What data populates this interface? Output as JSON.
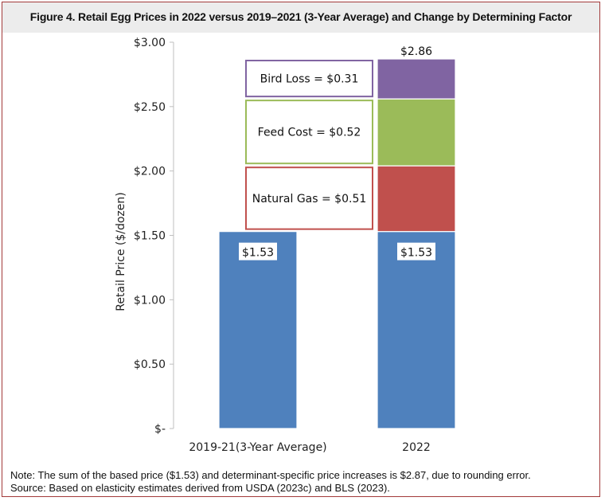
{
  "title": "Figure 4. Retail Egg Prices in 2022 versus 2019–2021 (3-Year Average) and Change by Determining Factor",
  "notes": [
    "Note: The sum of the based price ($1.53) and determinant-specific price increases is $2.87, due to rounding error.",
    "Source: Based on elasticity estimates derived from USDA (2023c) and BLS (2023)."
  ],
  "colors": {
    "base": "#4f81bd",
    "natural_gas": "#c0504d",
    "feed_cost": "#9bbb59",
    "bird_loss": "#8064a2",
    "frame": "#a23a3a",
    "plot_bg": "#ffffff",
    "title_bg": "#ececec"
  },
  "chart_data": {
    "type": "bar",
    "stacked": true,
    "title": "",
    "xlabel": "",
    "ylabel": "Retail Price ($/dozen)",
    "ylim": [
      0,
      3.0
    ],
    "yticks": [
      {
        "value": 0,
        "label": "$-"
      },
      {
        "value": 0.5,
        "label": "$0.50"
      },
      {
        "value": 1.0,
        "label": "$1.00"
      },
      {
        "value": 1.5,
        "label": "$1.50"
      },
      {
        "value": 2.0,
        "label": "$2.00"
      },
      {
        "value": 2.5,
        "label": "$2.50"
      },
      {
        "value": 3.0,
        "label": "$3.00"
      }
    ],
    "grid": false,
    "legend": "none",
    "categories": [
      "2019-21(3-Year Average)",
      "2022"
    ],
    "series": [
      {
        "key": "base",
        "values": [
          1.53,
          1.53
        ],
        "labels": [
          "$1.53",
          "$1.53"
        ]
      },
      {
        "key": "natural_gas",
        "values": [
          0,
          0.51
        ]
      },
      {
        "key": "feed_cost",
        "values": [
          0,
          0.52
        ]
      },
      {
        "key": "bird_loss",
        "values": [
          0,
          0.31
        ]
      }
    ],
    "total_labels": [
      "",
      "$2.86"
    ],
    "annotations": [
      {
        "series": "bird_loss",
        "text": "Bird Loss =  $0.31"
      },
      {
        "series": "feed_cost",
        "text": "Feed Cost =  $0.52"
      },
      {
        "series": "natural_gas",
        "text": "Natural Gas =  $0.51"
      }
    ]
  }
}
